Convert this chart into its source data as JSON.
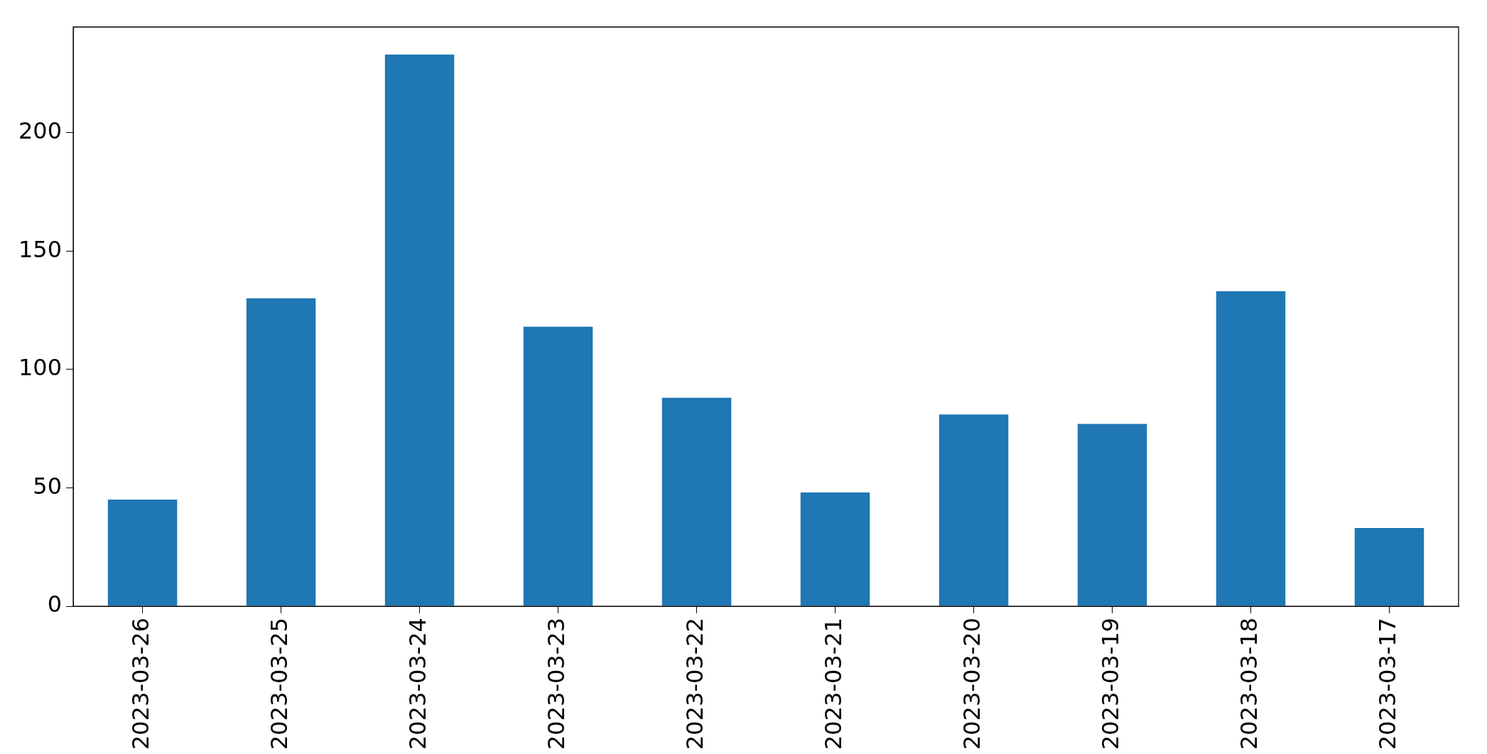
{
  "chart_data": {
    "type": "bar",
    "categories": [
      "2023-03-26",
      "2023-03-25",
      "2023-03-24",
      "2023-03-23",
      "2023-03-22",
      "2023-03-21",
      "2023-03-20",
      "2023-03-19",
      "2023-03-18",
      "2023-03-17"
    ],
    "values": [
      45,
      130,
      233,
      118,
      88,
      48,
      81,
      77,
      133,
      33
    ],
    "color": "#1f77b4",
    "ylim": [
      0,
      244.6
    ],
    "yticks": [
      0,
      50,
      100,
      150,
      200
    ],
    "grid": false,
    "legend": false
  }
}
